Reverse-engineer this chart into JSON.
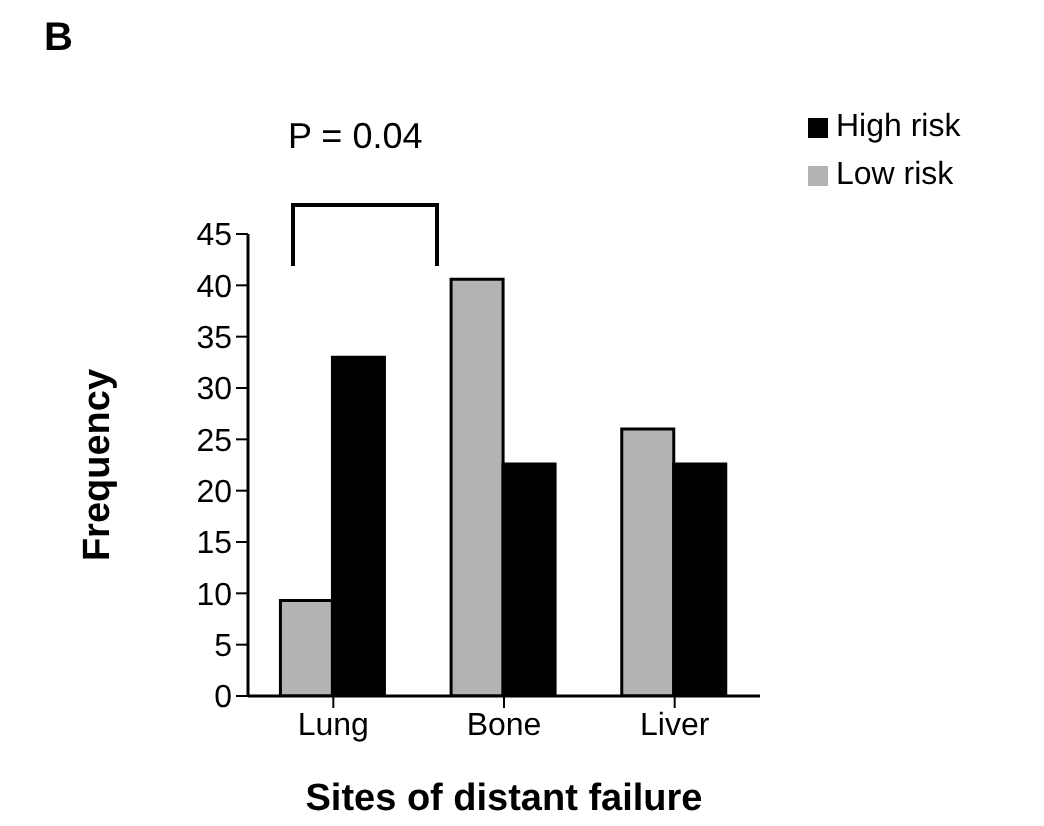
{
  "chart_data": {
    "type": "bar",
    "xlabel": "Sites of distant failure",
    "ylabel": "Frequency",
    "categories": [
      "Lung",
      "Bone",
      "Liver"
    ],
    "series": [
      {
        "name": "Low risk",
        "color": "#b3b3b3",
        "values": [
          9.3,
          40.6,
          26
        ]
      },
      {
        "name": "High risk",
        "color": "#000000",
        "values": [
          33,
          22.6,
          22.6
        ]
      }
    ],
    "ylim": [
      0,
      45
    ],
    "yticks": [
      0,
      5,
      10,
      15,
      20,
      25,
      30,
      35,
      40,
      45
    ],
    "grid": false,
    "legend": "top right",
    "annotations": [
      "B",
      "P = 0.04"
    ]
  }
}
